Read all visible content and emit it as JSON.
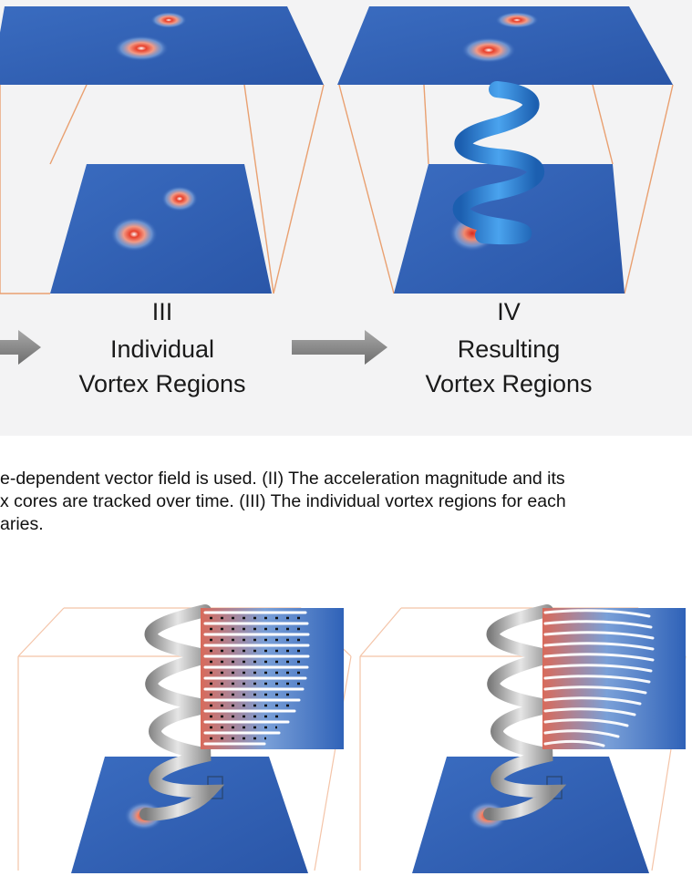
{
  "panels": [
    {
      "numeral": "III",
      "title_line1": "Individual",
      "title_line2": "Vortex Regions"
    },
    {
      "numeral": "IV",
      "title_line1": "Resulting",
      "title_line2": "Vortex Regions"
    }
  ],
  "caption": {
    "line1": "e-dependent vector field is used. (II) The acceleration magnitude and its",
    "line2": "x cores are tracked over time. (III) The individual vortex regions for each",
    "line3": "aries."
  },
  "colors": {
    "field_blue": "#2f5fb3",
    "vortex_red": "#e8412c",
    "box_edge": "#e9a070",
    "tube_blue": "#2a86d8",
    "arrow_gray": "#8c8c8c",
    "tube_gray": "#b8b8b8"
  }
}
